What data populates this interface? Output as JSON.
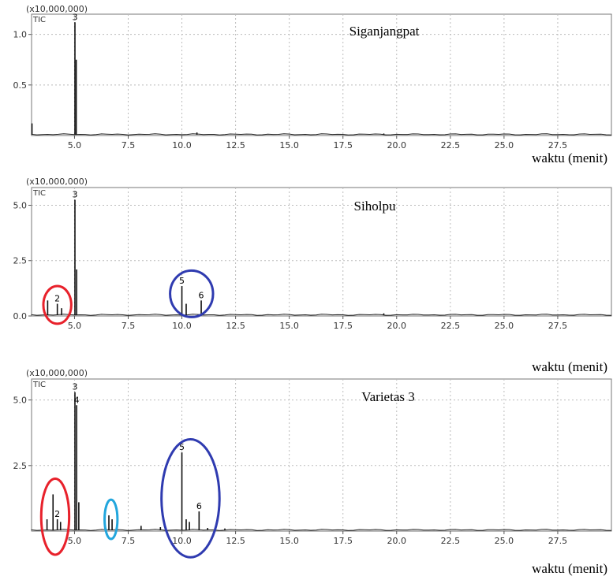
{
  "chart_data": [
    {
      "type": "line",
      "title": "Siganjangpat",
      "detector": "TIC",
      "multiplier": "(x10,000,000)",
      "xlabel": "waktu (menit)",
      "xlim": [
        3.0,
        30.0
      ],
      "ylim": [
        0,
        1.2
      ],
      "x_ticks": [
        "5.0",
        "7.5",
        "10.0",
        "12.5",
        "15.0",
        "17.5",
        "20.0",
        "22.5",
        "25.0",
        "27.5"
      ],
      "y_ticks": [
        "0.5",
        "1.0"
      ],
      "peaks": [
        {
          "x": 3.02,
          "y": 0.12,
          "label": ""
        },
        {
          "x": 5.02,
          "y": 1.12,
          "label": "3"
        },
        {
          "x": 5.08,
          "y": 0.75,
          "label": ""
        },
        {
          "x": 10.7,
          "y": 0.03,
          "label": ""
        },
        {
          "x": 19.4,
          "y": 0.02,
          "label": ""
        }
      ],
      "highlights": []
    },
    {
      "type": "line",
      "title": "Siholpu",
      "detector": "TIC",
      "multiplier": "(x10,000,000)",
      "xlabel": "",
      "xlim": [
        3.0,
        30.0
      ],
      "ylim": [
        0,
        5.8
      ],
      "x_ticks": [
        "5.0",
        "7.5",
        "10.0",
        "12.5",
        "15.0",
        "17.5",
        "20.0",
        "22.5",
        "25.0",
        "27.5"
      ],
      "y_ticks": [
        "0.0",
        "2.5",
        "5.0"
      ],
      "peaks": [
        {
          "x": 3.75,
          "y": 0.7,
          "label": ""
        },
        {
          "x": 4.2,
          "y": 0.55,
          "label": "2"
        },
        {
          "x": 4.4,
          "y": 0.35,
          "label": ""
        },
        {
          "x": 5.02,
          "y": 5.25,
          "label": "3"
        },
        {
          "x": 5.1,
          "y": 2.1,
          "label": ""
        },
        {
          "x": 10.0,
          "y": 1.35,
          "label": "5"
        },
        {
          "x": 10.2,
          "y": 0.55,
          "label": ""
        },
        {
          "x": 10.9,
          "y": 0.7,
          "label": "6"
        },
        {
          "x": 19.4,
          "y": 0.12,
          "label": ""
        }
      ],
      "highlights": [
        {
          "x": 4.2,
          "y": 0.5,
          "rx": 0.65,
          "ry": 0.85,
          "color": "#e8212b"
        },
        {
          "x": 10.45,
          "y": 1.0,
          "rx": 1.0,
          "ry": 1.05,
          "color": "#2f3bb0"
        }
      ]
    },
    {
      "type": "line",
      "title": "Varietas 3",
      "detector": "TIC",
      "multiplier": "(x10,000,000)",
      "xlabel": "waktu (menit)",
      "xlim": [
        3.0,
        30.0
      ],
      "ylim": [
        0,
        5.8
      ],
      "x_ticks": [
        "5.0",
        "7.5",
        "10.0",
        "12.5",
        "15.0",
        "17.5",
        "20.0",
        "22.5",
        "25.0",
        "27.5"
      ],
      "y_ticks": [
        "2.5",
        "5.0"
      ],
      "peaks": [
        {
          "x": 3.72,
          "y": 0.45,
          "label": ""
        },
        {
          "x": 4.0,
          "y": 1.4,
          "label": ""
        },
        {
          "x": 4.2,
          "y": 0.45,
          "label": "2"
        },
        {
          "x": 4.35,
          "y": 0.35,
          "label": ""
        },
        {
          "x": 5.02,
          "y": 5.3,
          "label": "3"
        },
        {
          "x": 5.1,
          "y": 4.8,
          "label": "4"
        },
        {
          "x": 5.2,
          "y": 1.1,
          "label": ""
        },
        {
          "x": 6.6,
          "y": 0.6,
          "label": ""
        },
        {
          "x": 6.75,
          "y": 0.45,
          "label": ""
        },
        {
          "x": 8.1,
          "y": 0.2,
          "label": ""
        },
        {
          "x": 9.0,
          "y": 0.15,
          "label": ""
        },
        {
          "x": 10.0,
          "y": 3.0,
          "label": "5"
        },
        {
          "x": 10.2,
          "y": 0.45,
          "label": ""
        },
        {
          "x": 10.35,
          "y": 0.35,
          "label": ""
        },
        {
          "x": 10.8,
          "y": 0.75,
          "label": "6"
        },
        {
          "x": 11.2,
          "y": 0.12,
          "label": ""
        },
        {
          "x": 12.0,
          "y": 0.1,
          "label": ""
        }
      ],
      "highlights": [
        {
          "x": 4.1,
          "y": 0.55,
          "rx": 0.65,
          "ry": 1.45,
          "color": "#e8212b"
        },
        {
          "x": 6.7,
          "y": 0.45,
          "rx": 0.3,
          "ry": 0.75,
          "color": "#22a6dd"
        },
        {
          "x": 10.4,
          "y": 1.25,
          "rx": 1.35,
          "ry": 2.25,
          "color": "#2f3bb0"
        }
      ]
    }
  ]
}
